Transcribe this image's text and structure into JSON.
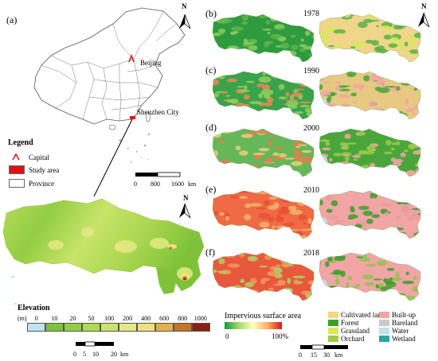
{
  "panel_labels": {
    "a": "(a)",
    "b": "(b)",
    "c": "(c)",
    "d": "(d)",
    "e": "(e)",
    "f": "(f)"
  },
  "years": [
    "1978",
    "1990",
    "2000",
    "2010",
    "2018"
  ],
  "china_map": {
    "north_label": "N",
    "capital_label": "Beijing",
    "study_area_label": "Shenzhen City",
    "scale_ticks": [
      "0",
      "800",
      "1600"
    ],
    "scale_unit": "km"
  },
  "legend": {
    "title": "Legend",
    "items": [
      {
        "label": "Capital",
        "icon": "caret-icon",
        "color": "#e01010"
      },
      {
        "label": "Study area",
        "color": "#e01010"
      },
      {
        "label": "Province",
        "color": "#ffffff"
      }
    ]
  },
  "elevation": {
    "north_label": "N",
    "title": "Elevation",
    "unit": "(m)",
    "ticks": [
      "0",
      "10",
      "20",
      "50",
      "100",
      "200",
      "400",
      "600",
      "800",
      "1000"
    ],
    "colors": [
      "#bfe3f2",
      "#7fc23a",
      "#94cd44",
      "#addc55",
      "#c8e46a",
      "#e3ea84",
      "#f1e080",
      "#e5b04a",
      "#c77425",
      "#8a1f12"
    ],
    "scale_ticks": [
      "0",
      "5",
      "10",
      "20"
    ],
    "scale_unit": "km"
  },
  "impervious_legend": {
    "title": "Impervious surface area",
    "min_label": "0",
    "max_label": "100%",
    "colors": [
      "#1a9641",
      "#a6d96a",
      "#ffffbf",
      "#fdae61",
      "#d7191c"
    ]
  },
  "landcover_legend": {
    "items": [
      {
        "label": "Cultivated land",
        "color": "#f5d58a"
      },
      {
        "label": "Built-up",
        "color": "#f2a5a5"
      },
      {
        "label": "Forest",
        "color": "#3aa02a"
      },
      {
        "label": "Bareland",
        "color": "#c9c9c9"
      },
      {
        "label": "Grassland",
        "color": "#d6ea5a"
      },
      {
        "label": "Water",
        "color": "#bfe0f0"
      },
      {
        "label": "Orchard",
        "color": "#9ccc4a"
      },
      {
        "label": "Wetland",
        "color": "#2aa5a5"
      }
    ]
  },
  "bottom_scale": {
    "ticks": [
      "0",
      "15",
      "30"
    ],
    "unit": "km",
    "north_label": "N"
  }
}
